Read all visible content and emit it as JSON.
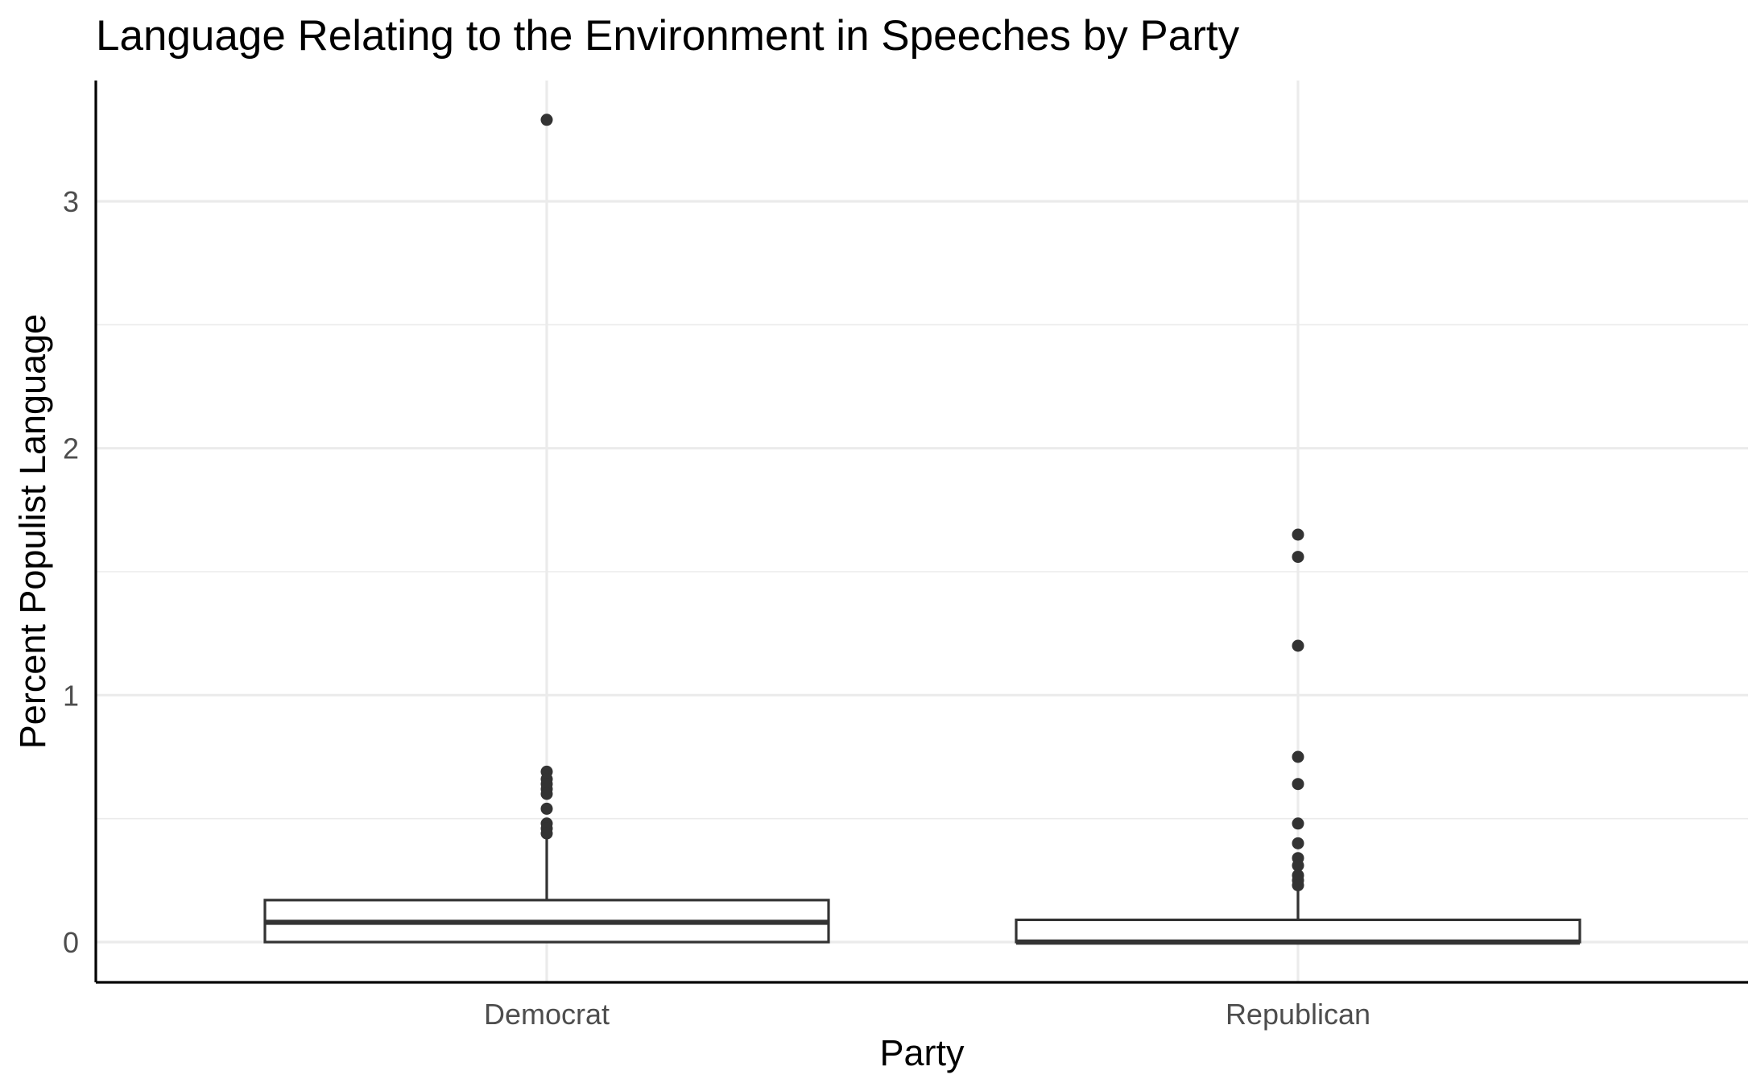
{
  "chart_data": {
    "type": "box",
    "title": "Language Relating to the Environment in Speeches by Party",
    "xlabel": "Party",
    "ylabel": "Percent Populist Language",
    "categories": [
      "Democrat",
      "Republican"
    ],
    "ylim": [
      -0.16,
      3.65
    ],
    "yticks": [
      0,
      1,
      2,
      3
    ],
    "yminor": [
      0.5,
      1.5,
      2.5
    ],
    "grid": true,
    "boxes": [
      {
        "name": "Democrat",
        "q1": 0.0,
        "median": 0.08,
        "q3": 0.17,
        "whisker_low": 0.0,
        "whisker_high": 0.42,
        "outliers": [
          3.33,
          0.69,
          0.66,
          0.64,
          0.62,
          0.6,
          0.54,
          0.48,
          0.46,
          0.44
        ]
      },
      {
        "name": "Republican",
        "q1": 0.0,
        "median": 0.0,
        "q3": 0.09,
        "whisker_low": 0.0,
        "whisker_high": 0.22,
        "outliers": [
          1.65,
          1.56,
          1.2,
          0.75,
          0.64,
          0.48,
          0.4,
          0.34,
          0.31,
          0.27,
          0.25,
          0.23
        ]
      }
    ]
  }
}
